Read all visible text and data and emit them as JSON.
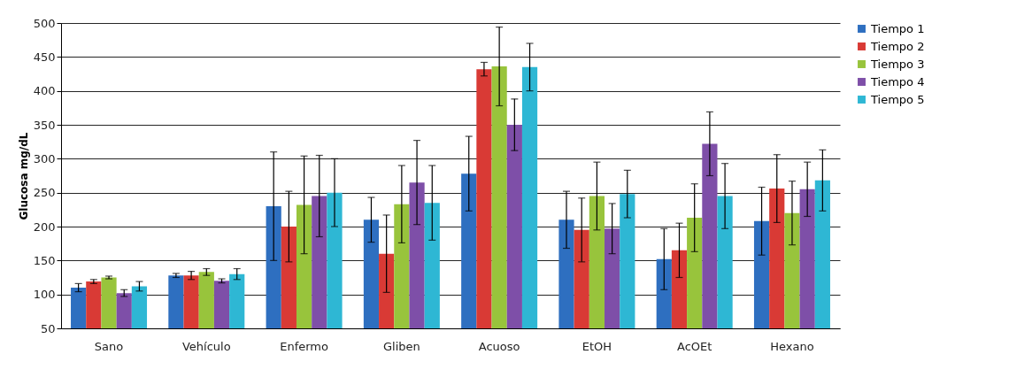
{
  "chart_data": {
    "type": "bar",
    "ylabel": "Glucosa  mg/dL",
    "categories": [
      "Sano",
      "Vehículo",
      "Enfermo",
      "Gliben",
      "Acuoso",
      "EtOH",
      "AcOEt",
      "Hexano"
    ],
    "series": [
      {
        "name": "Tiempo 1",
        "color": "#2e6fc0",
        "values": [
          110,
          128,
          230,
          210,
          278,
          210,
          152,
          208
        ],
        "errors": [
          6,
          3,
          80,
          33,
          55,
          42,
          45,
          50
        ]
      },
      {
        "name": "Tiempo 2",
        "color": "#d93a35",
        "values": [
          119,
          128,
          200,
          160,
          432,
          195,
          165,
          256
        ],
        "errors": [
          3,
          6,
          52,
          57,
          10,
          47,
          40,
          50
        ]
      },
      {
        "name": "Tiempo 3",
        "color": "#98c43c",
        "values": [
          125,
          133,
          232,
          233,
          436,
          245,
          213,
          220
        ],
        "errors": [
          2,
          5,
          72,
          57,
          58,
          50,
          50,
          47
        ]
      },
      {
        "name": "Tiempo 4",
        "color": "#7e4fa8",
        "values": [
          102,
          120,
          245,
          265,
          350,
          197,
          322,
          255
        ],
        "errors": [
          5,
          3,
          60,
          62,
          38,
          37,
          47,
          40
        ]
      },
      {
        "name": "Tiempo 5",
        "color": "#2eb7d4",
        "values": [
          112,
          130,
          250,
          235,
          435,
          248,
          245,
          268
        ],
        "errors": [
          7,
          8,
          50,
          55,
          35,
          35,
          48,
          45
        ]
      }
    ],
    "ylim": [
      50,
      500
    ],
    "yticks": [
      50,
      100,
      150,
      200,
      250,
      300,
      350,
      400,
      450,
      500
    ],
    "grid": "y",
    "legend": "right"
  }
}
